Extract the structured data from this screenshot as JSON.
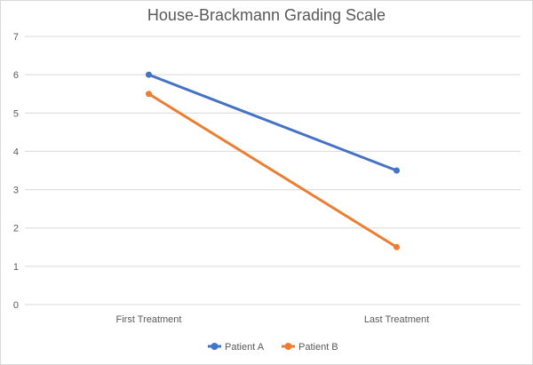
{
  "chart_data": {
    "type": "line",
    "title": "House-Brackmann Grading Scale",
    "xlabel": "",
    "ylabel": "",
    "categories": [
      "First Treatment",
      "Last Treatment"
    ],
    "series": [
      {
        "name": "Patient A",
        "values": [
          6,
          3.5
        ],
        "color": "#4472c4"
      },
      {
        "name": "Patient B",
        "values": [
          5.5,
          1.5
        ],
        "color": "#ed7d31"
      }
    ],
    "ylim": [
      0,
      7
    ],
    "yticks": [
      "0",
      "1",
      "2",
      "3",
      "4",
      "5",
      "6",
      "7"
    ],
    "grid": true,
    "legend": "bottom",
    "gridline_color": "#d9d9d9",
    "text_color": "#595959"
  }
}
